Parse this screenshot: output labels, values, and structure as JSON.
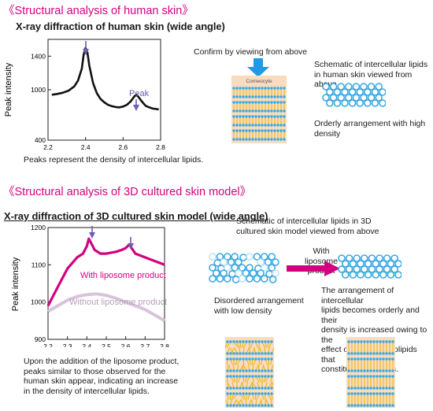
{
  "section1": {
    "title": "《Structural analysis of human skin》",
    "chart_title": "X-ray diffraction of human skin (wide angle)",
    "ylabel": "Peak intensity",
    "yticks": [
      "1400",
      "1000",
      "400"
    ],
    "xticks": [
      "2.2",
      "2.4",
      "2.6",
      "2.8"
    ],
    "peak_label": "Peak",
    "caption": "Peaks represent the density of intercellular lipids.",
    "confirm_label": "Confirm by viewing from above",
    "corneocyte_label": "Corneocyte",
    "schematic_label": [
      "Schematic of intercellular lipids",
      "in human skin viewed from above"
    ],
    "orderly_label": [
      "Orderly arrangement with high",
      "density"
    ]
  },
  "section2": {
    "title": "《Structural analysis of 3D cultured skin model》",
    "chart_title": "X-ray diffraction of 3D cultured skin model (wide angle)",
    "ylabel": "Peak intensity",
    "yticks": [
      "1200",
      "1100",
      "1000",
      "900"
    ],
    "xticks": [
      "2.2",
      "2.3",
      "2.4",
      "2.5",
      "2.6",
      "2.7",
      "2.8"
    ],
    "series_with": "With liposome product",
    "series_without": "Without liposome product",
    "caption": [
      "Upon the addition of the liposome product,",
      "peaks similar to those observed for the",
      "human skin appear, indicating an increase",
      "in the density of intercellular lipids."
    ],
    "schematic_title": [
      "Schematic of intercellular lipids in 3D",
      "cultured skin model viewed from above"
    ],
    "with_liposome_label": [
      "With liposome",
      "product"
    ],
    "disordered_label": [
      "Disordered arrangement",
      "with low density"
    ],
    "orderly_text": [
      "The arrangement of intercellular",
      "lipids becomes orderly and their",
      "density is increased owing to the",
      "effect of the phospholipids that",
      "constitute liposomes."
    ]
  },
  "colors": {
    "magenta": "#d4007f",
    "light_purple": "#d9c2dc",
    "blue": "#1e9be6",
    "lipid_blue": "#3aa8e0",
    "tan": "#f7dcc0",
    "arrow_purple": "#6e5cb0"
  },
  "chart_data": [
    {
      "type": "line",
      "title": "X-ray diffraction of human skin (wide angle)",
      "ylabel": "Peak intensity",
      "xlim": [
        2.2,
        2.8
      ],
      "ylim": [
        400,
        1600
      ],
      "series": [
        {
          "x": [
            2.22,
            2.25,
            2.28,
            2.31,
            2.34,
            2.36,
            2.38,
            2.39,
            2.4,
            2.41,
            2.42,
            2.44,
            2.46,
            2.48,
            2.5,
            2.52,
            2.54,
            2.56,
            2.58,
            2.6,
            2.62,
            2.64,
            2.66,
            2.67,
            2.68,
            2.7,
            2.72,
            2.74,
            2.76,
            2.78,
            2.79
          ],
          "y": [
            940,
            950,
            965,
            990,
            1040,
            1110,
            1250,
            1420,
            1500,
            1440,
            1290,
            1080,
            960,
            890,
            850,
            820,
            805,
            795,
            790,
            800,
            820,
            860,
            920,
            940,
            920,
            860,
            810,
            790,
            775,
            770,
            765
          ]
        }
      ],
      "annotations": [
        "Peak"
      ]
    },
    {
      "type": "line",
      "title": "X-ray diffraction of 3D cultured skin model (wide angle)",
      "ylabel": "Peak intensity",
      "xlim": [
        2.2,
        2.8
      ],
      "ylim": [
        900,
        1200
      ],
      "series": [
        {
          "name": "With liposome product",
          "x": [
            2.2,
            2.25,
            2.3,
            2.35,
            2.38,
            2.4,
            2.41,
            2.42,
            2.44,
            2.47,
            2.5,
            2.55,
            2.58,
            2.6,
            2.62,
            2.63,
            2.65,
            2.7,
            2.75,
            2.8
          ],
          "y": [
            990,
            1040,
            1090,
            1120,
            1130,
            1150,
            1170,
            1160,
            1140,
            1130,
            1130,
            1135,
            1140,
            1145,
            1155,
            1145,
            1130,
            1120,
            1110,
            1100
          ]
        },
        {
          "name": "Without liposome product",
          "x": [
            2.2,
            2.25,
            2.3,
            2.35,
            2.4,
            2.45,
            2.5,
            2.55,
            2.6,
            2.65,
            2.7,
            2.75,
            2.8
          ],
          "y": [
            975,
            990,
            1005,
            1015,
            1020,
            1022,
            1018,
            1010,
            1000,
            990,
            980,
            965,
            950
          ]
        }
      ]
    }
  ]
}
